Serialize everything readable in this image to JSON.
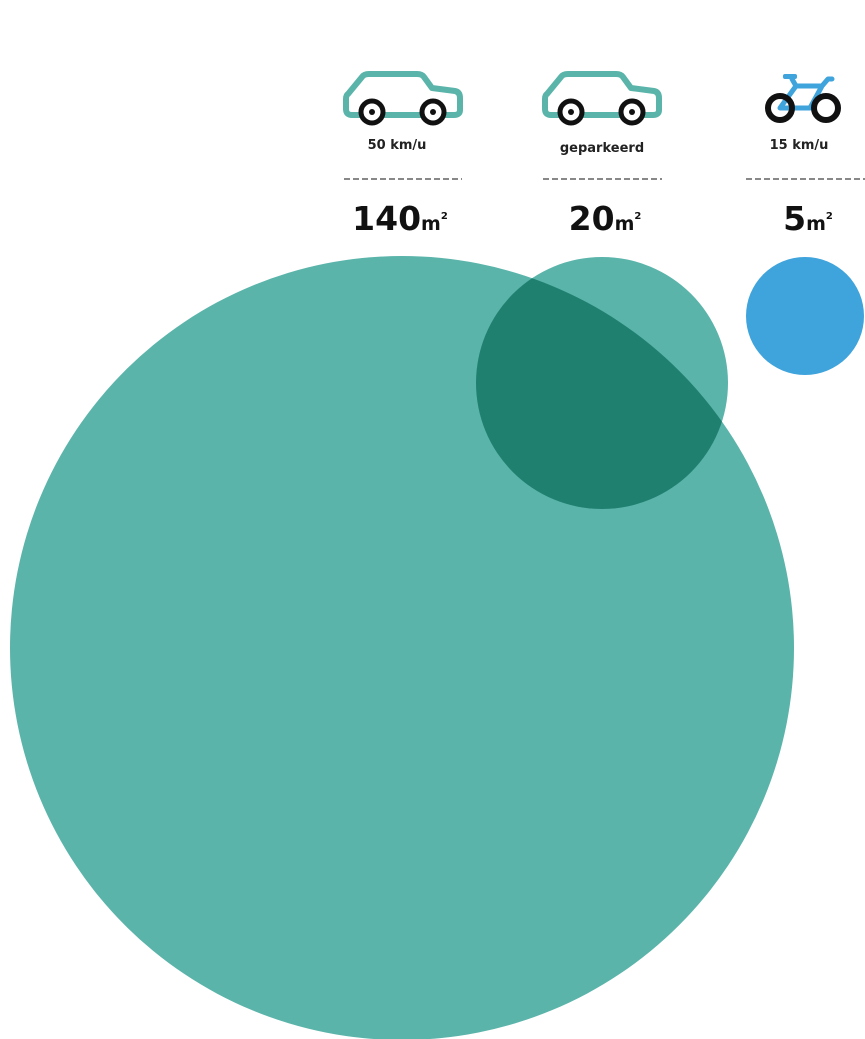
{
  "chart_data": {
    "type": "bubble",
    "unit": "m",
    "unit_exponent": "2",
    "items": [
      {
        "icon": "car-icon",
        "label": "50 km/u",
        "value": 140,
        "value_text": "140",
        "color": "#5ab4aa"
      },
      {
        "icon": "car-icon",
        "label": "geparkeerd",
        "value": 20,
        "value_text": "20",
        "color": "#5ab4aa"
      },
      {
        "icon": "bicycle-icon",
        "label": "15 km/u",
        "value": 5,
        "value_text": "5",
        "color": "#3fa3dc"
      }
    ],
    "overlap_color": "#1f8070"
  }
}
